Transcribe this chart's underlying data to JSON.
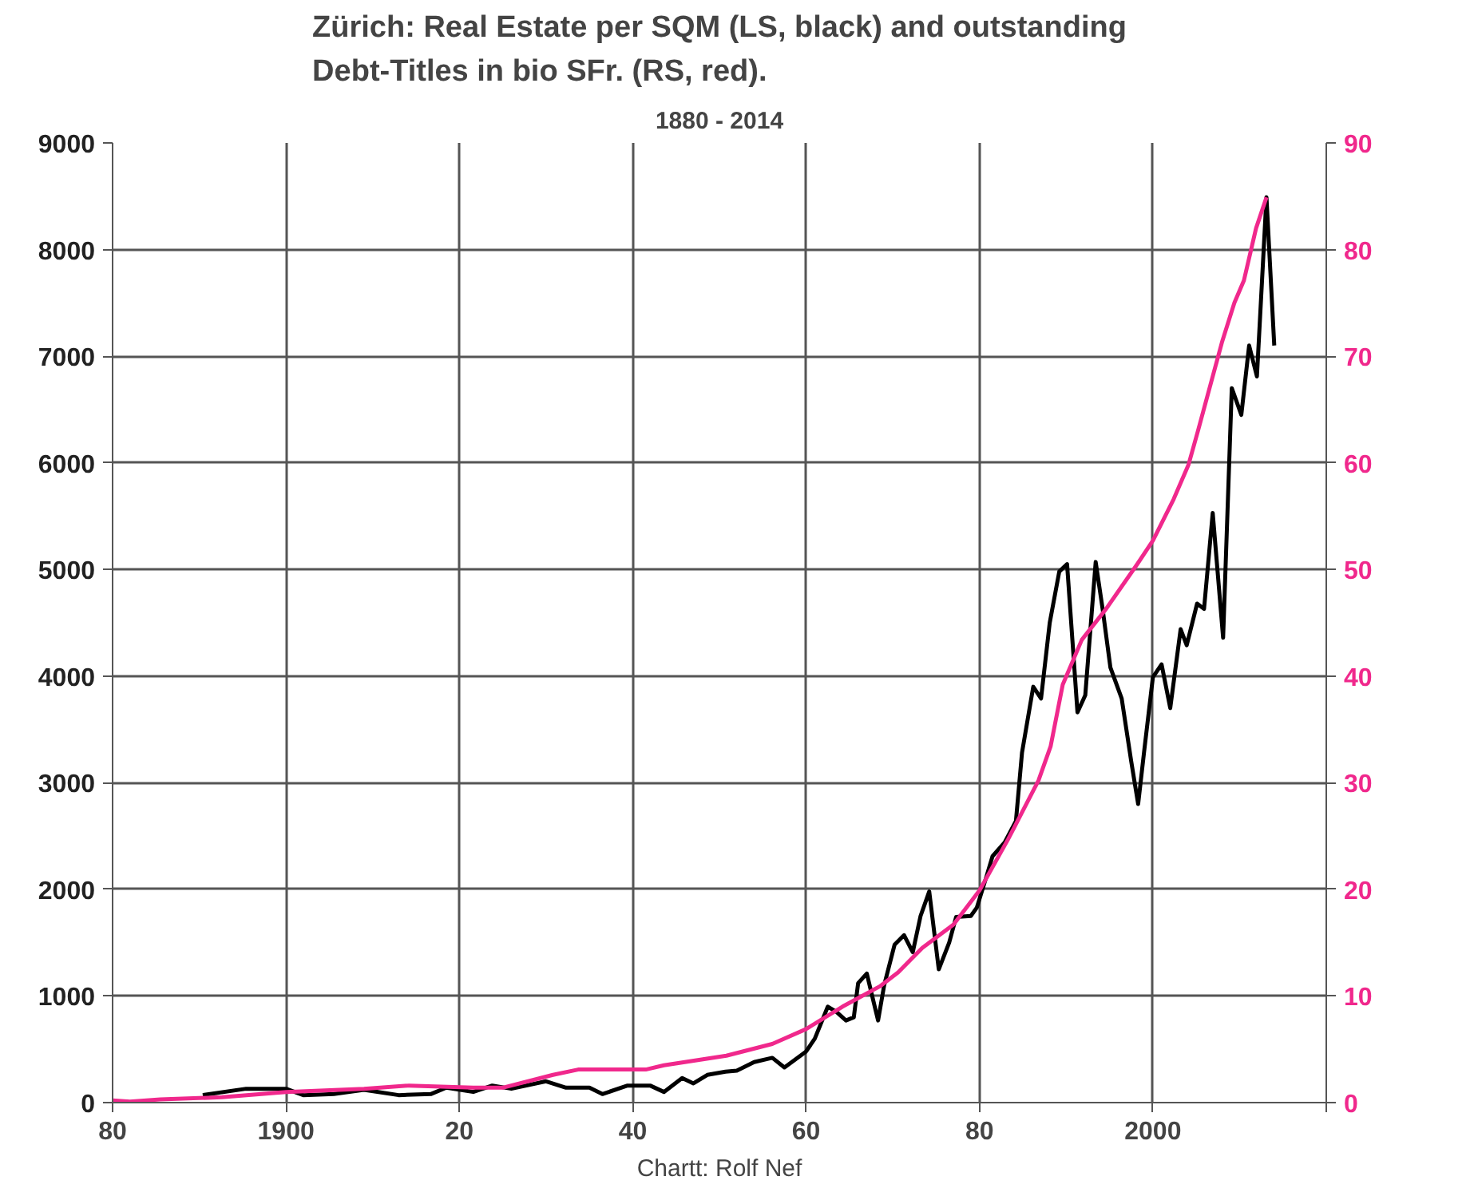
{
  "chart_data": {
    "type": "line",
    "title": "Zürich: Real Estate per SQM (LS, black) and outstanding\nDebt-Titles in bio SFr. (RS, red).",
    "subtitle": "1880 - 2014",
    "annotations": [
      "Chartt: Rolf Nef"
    ],
    "xlim": [
      1880,
      2020
    ],
    "xticks": [
      {
        "value": 1880,
        "label": "80"
      },
      1900,
      {
        "value": 1920,
        "label": "20"
      },
      {
        "value": 1940,
        "label": "40"
      },
      {
        "value": 1960,
        "label": "60"
      },
      {
        "value": 1980,
        "label": "80"
      },
      2000,
      {
        "value": 2020,
        "label": null
      }
    ],
    "ylim": [
      0,
      9000
    ],
    "yticks": [
      0,
      1000,
      2000,
      3000,
      4000,
      5000,
      6000,
      7000,
      8000,
      9000
    ],
    "y2lim": [
      0,
      90
    ],
    "y2ticks": [
      0,
      10,
      20,
      30,
      40,
      50,
      60,
      70,
      80,
      90
    ],
    "grid": true,
    "line_style": "solid",
    "marker": "none",
    "series": [
      {
        "color": "#000000",
        "x": [
          1890.4,
          1895.4,
          1900,
          1902,
          1905.5,
          1909,
          1913,
          1916.7,
          1918.5,
          1921.6,
          1923.8,
          1926,
          1930,
          1932.3,
          1935,
          1936.5,
          1939.4,
          1942,
          1943.6,
          1945.7,
          1947,
          1948.6,
          1950.7,
          1952,
          1954,
          1956.1,
          1957.5,
          1959,
          1960,
          1961,
          1962.5,
          1963.5,
          1964.6,
          1965.5,
          1966,
          1967,
          1968.3,
          1969,
          1970.2,
          1971.3,
          1972.3,
          1973.2,
          1974.2,
          1975.3,
          1976.5,
          1977.3,
          1979,
          1979.7,
          1980.8,
          1981.5,
          1982.9,
          1984.2,
          1984.9,
          1986.2,
          1987.1,
          1988.1,
          1989.2,
          1990.1,
          1991.3,
          1992.2,
          1993.4,
          1994.2,
          1995.1,
          1996.4,
          1997.5,
          1998.3,
          1999,
          2000,
          2001,
          2002,
          2003.2,
          2003.9,
          2005.1,
          2005.9,
          2006.9,
          2008.1,
          2009.1,
          2010.2,
          2011.1,
          2012,
          2013.1,
          2014
        ],
        "values": [
          70,
          130,
          130,
          70,
          80,
          120,
          70,
          80,
          140,
          100,
          160,
          130,
          200,
          140,
          140,
          80,
          160,
          160,
          100,
          230,
          180,
          260,
          290,
          300,
          380,
          420,
          330,
          420,
          480,
          600,
          900,
          850,
          770,
          800,
          1120,
          1210,
          770,
          1100,
          1480,
          1570,
          1410,
          1750,
          1980,
          1250,
          1500,
          1740,
          1750,
          1830,
          2120,
          2310,
          2440,
          2640,
          3280,
          3900,
          3790,
          4500,
          4980,
          5050,
          3660,
          3820,
          5070,
          4630,
          4080,
          3790,
          3200,
          2800,
          3300,
          3990,
          4110,
          3700,
          4440,
          4290,
          4680,
          4630,
          5530,
          4360,
          6700,
          6450,
          7100,
          6810,
          8490,
          7100
        ]
      },
      {
        "color": "#f0288c",
        "axis": "y2",
        "x": [
          1880,
          1882,
          1885.5,
          1892.6,
          1900,
          1909,
          1914.2,
          1921.6,
          1925,
          1930.8,
          1933.7,
          1941.5,
          1943.6,
          1950.8,
          1956.1,
          1960,
          1964.2,
          1968.5,
          1970.6,
          1973.4,
          1977,
          1980,
          1983.3,
          1986.8,
          1988.2,
          1989.6,
          1991.8,
          1994.6,
          1998.2,
          2000,
          2002.4,
          2004.1,
          2005.2,
          2008,
          2009.4,
          2010.5,
          2011.9,
          2013.1
        ],
        "values": [
          0.2,
          0.1,
          0.3,
          0.5,
          1,
          1.3,
          1.6,
          1.4,
          1.4,
          2.6,
          3.1,
          3.1,
          3.5,
          4.4,
          5.5,
          6.9,
          9,
          10.9,
          12.2,
          14.5,
          16.7,
          19.9,
          24.7,
          30.2,
          33.4,
          39.2,
          43.4,
          46.3,
          50.5,
          52.7,
          56.6,
          59.8,
          63,
          71.4,
          75,
          77.1,
          82,
          84.9
        ]
      }
    ]
  }
}
